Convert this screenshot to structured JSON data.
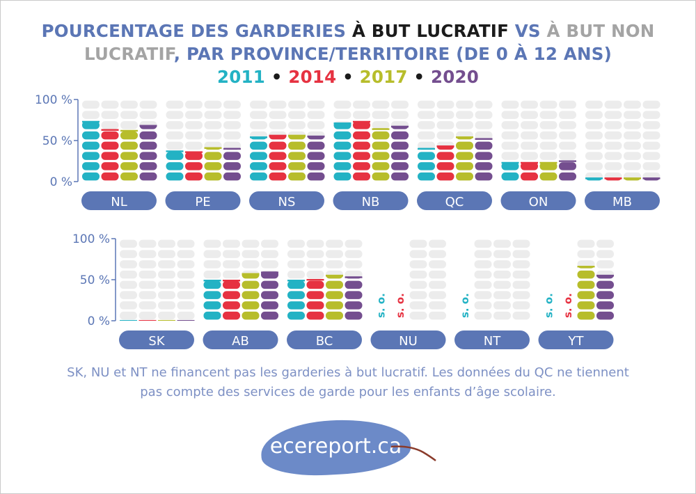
{
  "title": {
    "part1": "POURCENTAGE DES GARDERIES ",
    "part2": "À BUT LUCRATIF",
    "part3": " VS ",
    "part4": "À BUT NON",
    "part5": "LUCRATIF",
    "part6": ", PAR PROVINCE/TERRITOIRE (DE 0 À 12 ANS)"
  },
  "legend": [
    {
      "year": "2011",
      "color": "#23b2c4"
    },
    {
      "year": "2014",
      "color": "#e63241"
    },
    {
      "year": "2017",
      "color": "#b7bd2b"
    },
    {
      "year": "2020",
      "color": "#744e8f"
    }
  ],
  "legend_separator": "•",
  "footnote": {
    "line1": "SK, NU et NT ne financent pas les garderies à but lucratif. Les données du QC ne tiennent",
    "line2": "pas compte des services de garde pour les enfants d’âge scolaire."
  },
  "logo": {
    "text": "ecereport.ca"
  },
  "chart_data": {
    "type": "bar",
    "ylim": [
      0,
      100
    ],
    "y_ticks": [
      "0 %",
      "50 %",
      "100 %"
    ],
    "series_names": [
      "2011",
      "2014",
      "2017",
      "2020"
    ],
    "not_applicable_label": "s. o.",
    "background_color": "#ececec",
    "label_color": "#5b76b5",
    "rows": [
      {
        "provinces": [
          {
            "name": "NL",
            "values": [
              74,
              64,
              63,
              69
            ]
          },
          {
            "name": "PE",
            "values": [
              38,
              37,
              42,
              41
            ]
          },
          {
            "name": "NS",
            "values": [
              55,
              57,
              57,
              56
            ]
          },
          {
            "name": "NB",
            "values": [
              72,
              74,
              65,
              68
            ]
          },
          {
            "name": "QC",
            "values": [
              41,
              44,
              55,
              53
            ]
          },
          {
            "name": "ON",
            "values": [
              24,
              24,
              24,
              26
            ]
          },
          {
            "name": "MB",
            "values": [
              5,
              5,
              5,
              5
            ]
          }
        ]
      },
      {
        "provinces": [
          {
            "name": "SK",
            "values": [
              1,
              1,
              1,
              1
            ]
          },
          {
            "name": "AB",
            "values": [
              50,
              50,
              58,
              60
            ]
          },
          {
            "name": "BC",
            "values": [
              50,
              51,
              56,
              54
            ]
          },
          {
            "name": "NU",
            "values": [
              null,
              null,
              0,
              0
            ]
          },
          {
            "name": "NT",
            "values": [
              null,
              0,
              0,
              0
            ]
          },
          {
            "name": "YT",
            "values": [
              null,
              null,
              67,
              56
            ]
          }
        ]
      }
    ]
  }
}
